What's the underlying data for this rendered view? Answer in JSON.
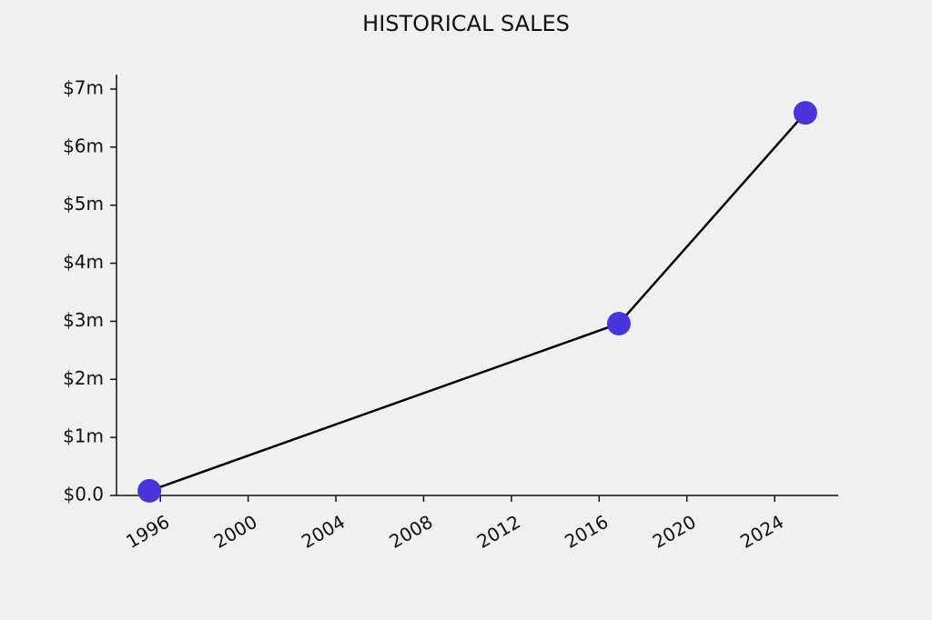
{
  "chart_data": {
    "type": "line",
    "title": "HISTORICAL SALES",
    "x": [
      1995.5,
      2016.9,
      2025.4
    ],
    "series": [
      {
        "values": [
          80000,
          2960000,
          6590000
        ],
        "color": "#000000",
        "marker_color": "#4a35dd"
      }
    ],
    "xlim": [
      1994.0,
      2026.9
    ],
    "xticks": [
      1996,
      2000,
      2004,
      2008,
      2012,
      2016,
      2020,
      2024
    ],
    "ylim": [
      0,
      7250000
    ],
    "yticks": [
      {
        "value": 0,
        "label": "$0.0"
      },
      {
        "value": 1000000,
        "label": "$1m"
      },
      {
        "value": 2000000,
        "label": "$2m"
      },
      {
        "value": 3000000,
        "label": "$3m"
      },
      {
        "value": 4000000,
        "label": "$4m"
      },
      {
        "value": 5000000,
        "label": "$5m"
      },
      {
        "value": 6000000,
        "label": "$6m"
      },
      {
        "value": 7000000,
        "label": "$7m"
      }
    ],
    "grid": false
  }
}
